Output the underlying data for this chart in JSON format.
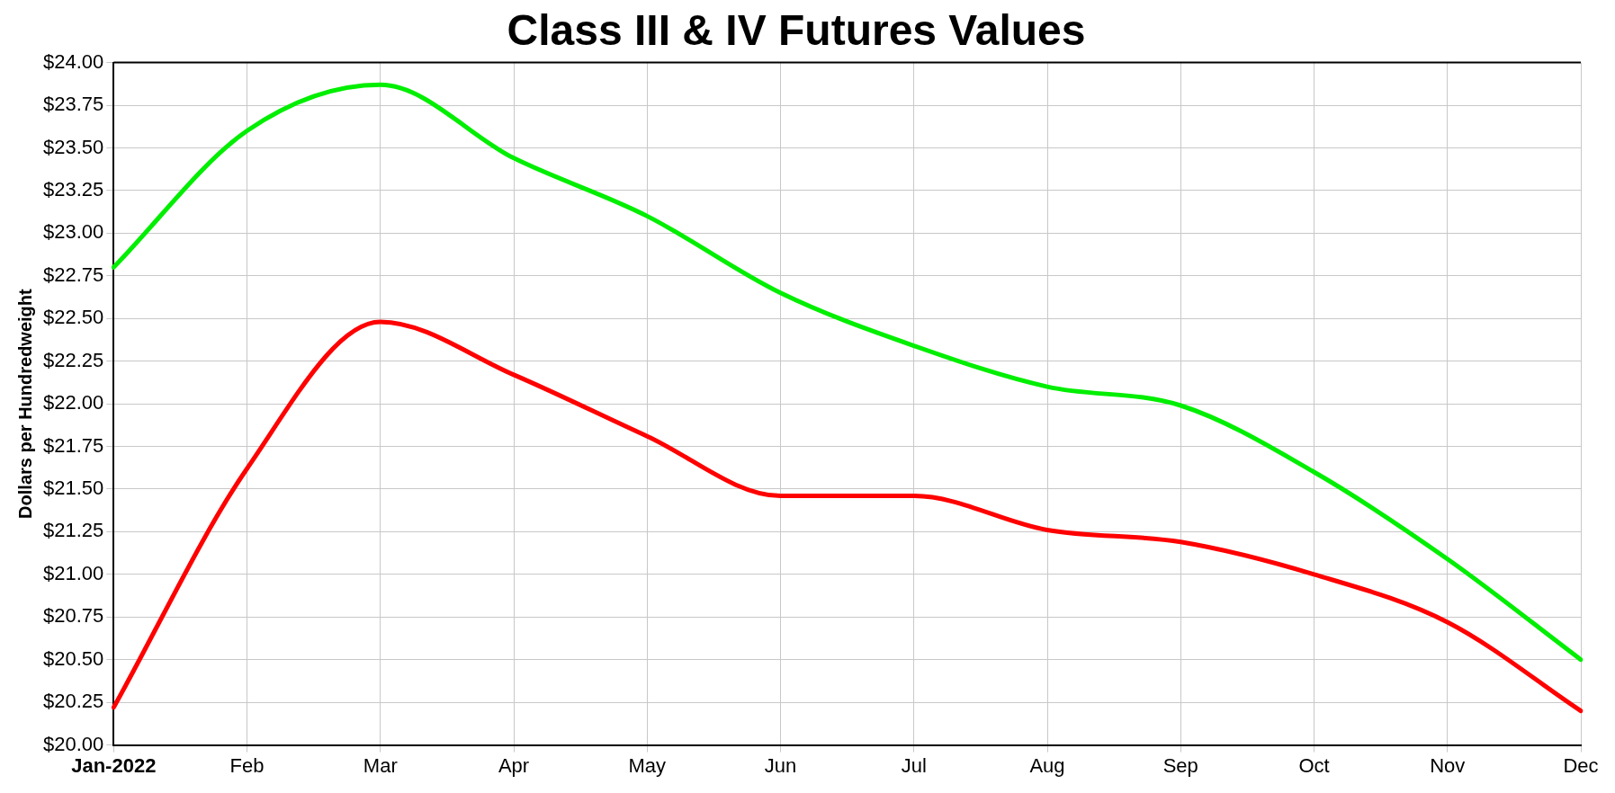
{
  "chart_data": {
    "type": "line",
    "title": "Class III & IV Futures Values",
    "ylabel": "Dollars per Hundredweight",
    "categories": [
      "Jan-2022",
      "Feb",
      "Mar",
      "Apr",
      "May",
      "Jun",
      "Jul",
      "Aug",
      "Sep",
      "Oct",
      "Nov",
      "Dec"
    ],
    "series": [
      {
        "color": "#00ee00",
        "values": [
          22.8,
          23.6,
          23.87,
          23.44,
          23.1,
          22.65,
          22.34,
          22.1,
          21.99,
          21.6,
          21.09,
          20.5
        ]
      },
      {
        "color": "#ff0000",
        "values": [
          20.22,
          21.62,
          22.48,
          22.17,
          21.81,
          21.46,
          21.46,
          21.26,
          21.19,
          21.0,
          20.72,
          20.2
        ]
      }
    ],
    "ylim": [
      20,
      24
    ],
    "yticks": [
      {
        "value": 20,
        "label": "$20.00"
      },
      {
        "value": 20.25,
        "label": "$20.25"
      },
      {
        "value": 20.5,
        "label": "$20.50"
      },
      {
        "value": 20.75,
        "label": "$20.75"
      },
      {
        "value": 21,
        "label": "$21.00"
      },
      {
        "value": 21.25,
        "label": "$21.25"
      },
      {
        "value": 21.5,
        "label": "$21.50"
      },
      {
        "value": 21.75,
        "label": "$21.75"
      },
      {
        "value": 22,
        "label": "$22.00"
      },
      {
        "value": 22.25,
        "label": "$22.25"
      },
      {
        "value": 22.5,
        "label": "$22.50"
      },
      {
        "value": 22.75,
        "label": "$22.75"
      },
      {
        "value": 23,
        "label": "$23.00"
      },
      {
        "value": 23.25,
        "label": "$23.25"
      },
      {
        "value": 23.5,
        "label": "$23.50"
      },
      {
        "value": 23.75,
        "label": "$23.75"
      },
      {
        "value": 24,
        "label": "$24.00"
      }
    ],
    "grid": true,
    "legend": false,
    "marker": "none",
    "line_style": "solid"
  }
}
